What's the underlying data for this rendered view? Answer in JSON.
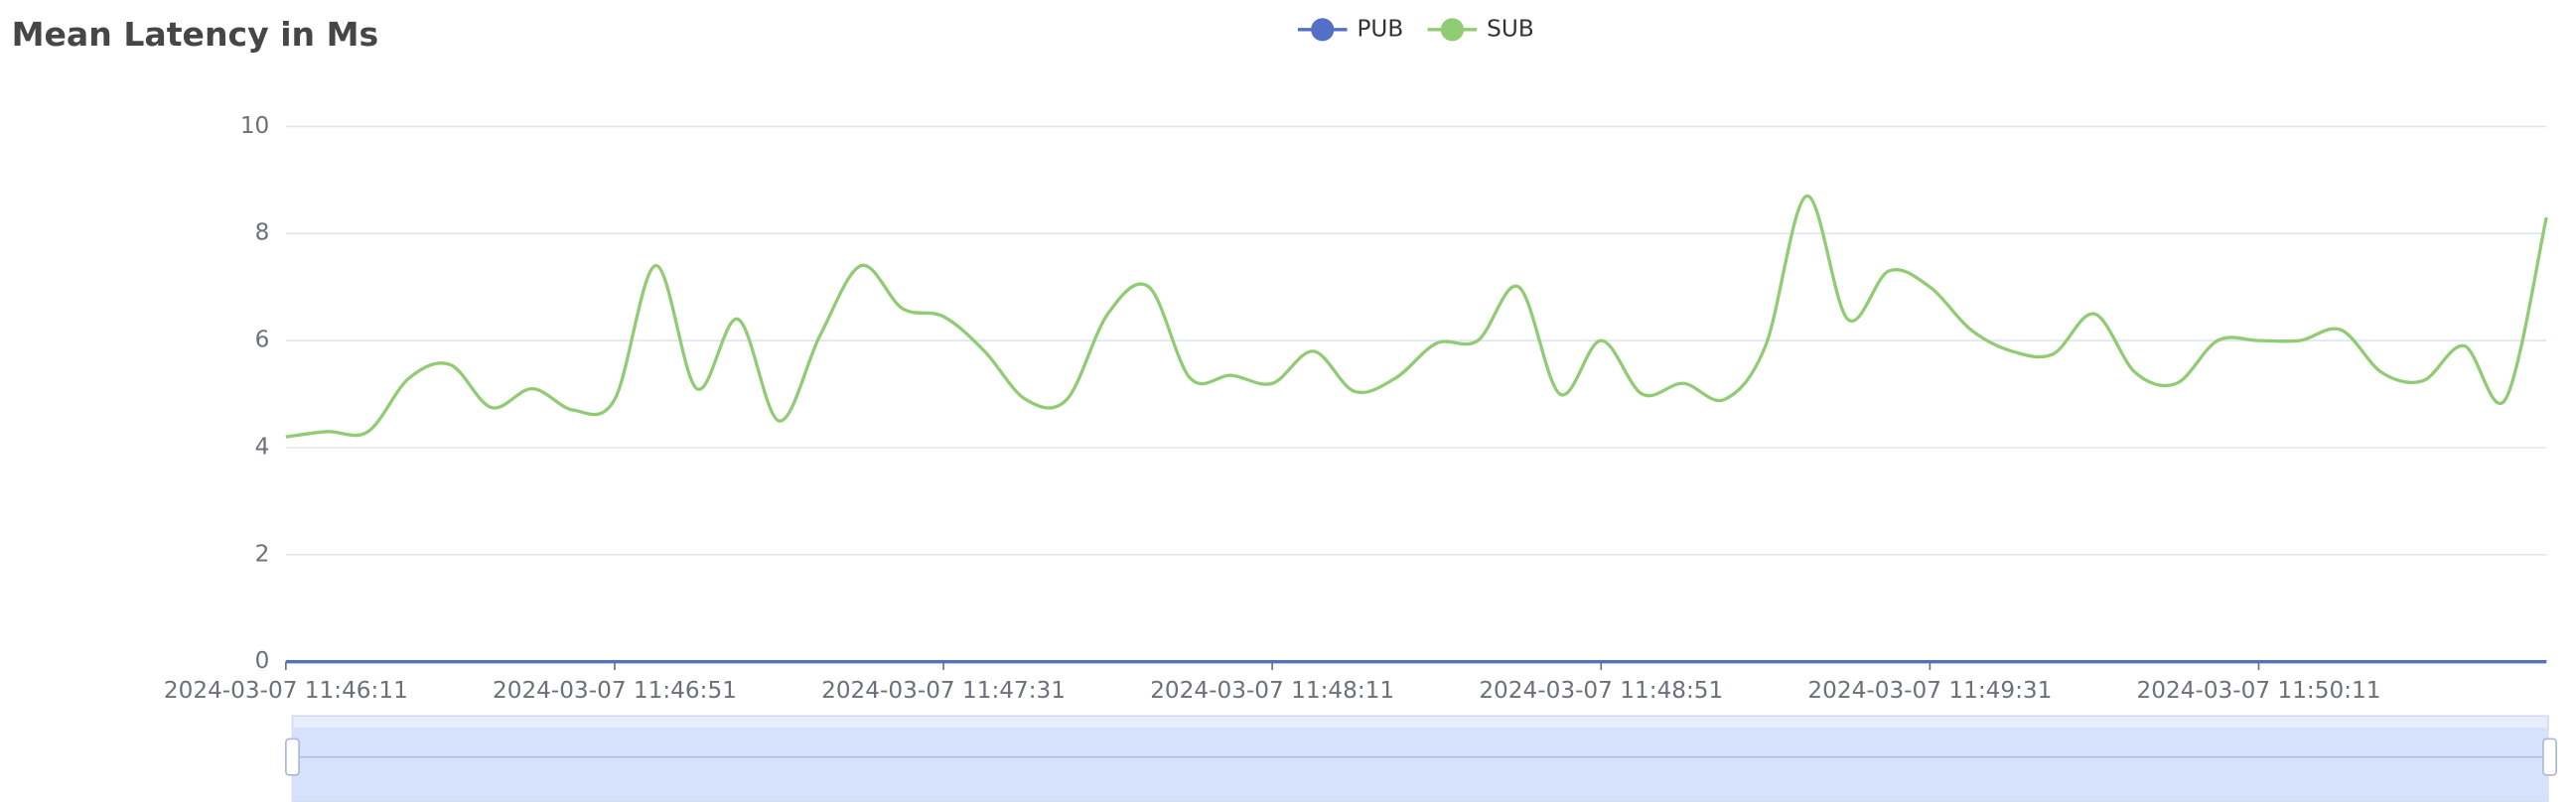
{
  "chart_data": {
    "type": "line",
    "title": "Mean Latency in Ms",
    "x": [
      "2024-03-07 11:46:11",
      "2024-03-07 11:46:16",
      "2024-03-07 11:46:21",
      "2024-03-07 11:46:26",
      "2024-03-07 11:46:31",
      "2024-03-07 11:46:36",
      "2024-03-07 11:46:41",
      "2024-03-07 11:46:46",
      "2024-03-07 11:46:51",
      "2024-03-07 11:46:56",
      "2024-03-07 11:47:01",
      "2024-03-07 11:47:06",
      "2024-03-07 11:47:11",
      "2024-03-07 11:47:16",
      "2024-03-07 11:47:21",
      "2024-03-07 11:47:26",
      "2024-03-07 11:47:31",
      "2024-03-07 11:47:36",
      "2024-03-07 11:47:41",
      "2024-03-07 11:47:46",
      "2024-03-07 11:47:51",
      "2024-03-07 11:47:56",
      "2024-03-07 11:48:01",
      "2024-03-07 11:48:06",
      "2024-03-07 11:48:11",
      "2024-03-07 11:48:16",
      "2024-03-07 11:48:21",
      "2024-03-07 11:48:26",
      "2024-03-07 11:48:31",
      "2024-03-07 11:48:36",
      "2024-03-07 11:48:41",
      "2024-03-07 11:48:46",
      "2024-03-07 11:48:51",
      "2024-03-07 11:48:56",
      "2024-03-07 11:49:01",
      "2024-03-07 11:49:06",
      "2024-03-07 11:49:11",
      "2024-03-07 11:49:16",
      "2024-03-07 11:49:21",
      "2024-03-07 11:49:26",
      "2024-03-07 11:49:31",
      "2024-03-07 11:49:36",
      "2024-03-07 11:49:41",
      "2024-03-07 11:49:46",
      "2024-03-07 11:49:51",
      "2024-03-07 11:49:56",
      "2024-03-07 11:50:01",
      "2024-03-07 11:50:06",
      "2024-03-07 11:50:11",
      "2024-03-07 11:50:16",
      "2024-03-07 11:50:21",
      "2024-03-07 11:50:26",
      "2024-03-07 11:50:31",
      "2024-03-07 11:50:36",
      "2024-03-07 11:50:41",
      "2024-03-07 11:50:46"
    ],
    "series": [
      {
        "name": "PUB",
        "color": "#5470c6",
        "values": [
          0,
          0,
          0,
          0,
          0,
          0,
          0,
          0,
          0,
          0,
          0,
          0,
          0,
          0,
          0,
          0,
          0,
          0,
          0,
          0,
          0,
          0,
          0,
          0,
          0,
          0,
          0,
          0,
          0,
          0,
          0,
          0,
          0,
          0,
          0,
          0,
          0,
          0,
          0,
          0,
          0,
          0,
          0,
          0,
          0,
          0,
          0,
          0,
          0,
          0,
          0,
          0,
          0,
          0,
          0,
          0
        ]
      },
      {
        "name": "SUB",
        "color": "#91cc75",
        "values": [
          4.2,
          4.3,
          4.3,
          5.3,
          5.55,
          4.75,
          5.1,
          4.7,
          4.9,
          7.4,
          5.1,
          6.4,
          4.5,
          6.1,
          7.4,
          6.6,
          6.45,
          5.8,
          4.9,
          4.9,
          6.5,
          7.0,
          5.3,
          5.35,
          5.2,
          5.8,
          5.05,
          5.3,
          5.95,
          6.0,
          7.0,
          5.0,
          6.0,
          5.0,
          5.2,
          4.9,
          5.9,
          8.7,
          6.4,
          7.3,
          7.0,
          6.2,
          5.8,
          5.75,
          6.5,
          5.4,
          5.2,
          6.0,
          6.0,
          6.0,
          6.2,
          5.4,
          5.25,
          5.9,
          4.9,
          8.3
        ]
      }
    ],
    "xticks": [
      "2024-03-07 11:46:11",
      "2024-03-07 11:46:51",
      "2024-03-07 11:47:31",
      "2024-03-07 11:48:11",
      "2024-03-07 11:48:51",
      "2024-03-07 11:49:31",
      "2024-03-07 11:50:11"
    ],
    "ylim": [
      0,
      10
    ],
    "yticks": [
      0,
      2,
      4,
      6,
      8,
      10
    ],
    "grid": true,
    "smooth": true,
    "legend": "top"
  }
}
